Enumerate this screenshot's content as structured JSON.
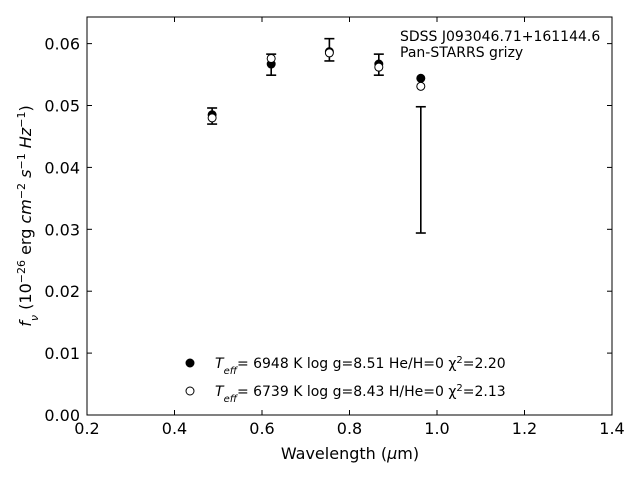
{
  "chart_data": {
    "type": "scatter",
    "xlabel": "Wavelength (μm)",
    "ylabel": "f_ν (10^-26 erg cm^-2 s^-1 Hz^-1)",
    "xlim": [
      0.2,
      1.4
    ],
    "ylim": [
      0.0,
      0.0643
    ],
    "xticks": [
      0.2,
      0.4,
      0.6,
      0.8,
      1.0,
      1.2,
      1.4
    ],
    "xtick_labels": [
      "0.2",
      "0.4",
      "0.6",
      "0.8",
      "1.0",
      "1.2",
      "1.4"
    ],
    "yticks": [
      0.0,
      0.01,
      0.02,
      0.03,
      0.04,
      0.05,
      0.06
    ],
    "ytick_labels": [
      "0.00",
      "0.01",
      "0.02",
      "0.03",
      "0.04",
      "0.05",
      "0.06"
    ],
    "grid": false,
    "annotations": [
      "SDSS J093046.71+161144.6",
      "Pan-STARRS grizy"
    ],
    "observed": {
      "x": [
        0.486,
        0.621,
        0.754,
        0.867,
        0.963
      ],
      "y": [
        0.0483,
        0.0566,
        0.059,
        0.0566,
        0.0396
      ],
      "yerr_low": [
        0.0013,
        0.0017,
        0.0018,
        0.0017,
        0.0102
      ],
      "yerr_high": [
        0.0013,
        0.0017,
        0.0018,
        0.0017,
        0.0102
      ]
    },
    "series": [
      {
        "marker": "filled-circle",
        "color": "#000000",
        "x": [
          0.486,
          0.621,
          0.754,
          0.867,
          0.963
        ],
        "y": [
          0.0485,
          0.0567,
          0.0587,
          0.0567,
          0.0544
        ]
      },
      {
        "marker": "open-circle",
        "color": "#000000",
        "x": [
          0.486,
          0.621,
          0.754,
          0.867,
          0.963
        ],
        "y": [
          0.048,
          0.0576,
          0.0585,
          0.0562,
          0.0531
        ]
      }
    ],
    "legend": {
      "location": "lower-center",
      "entries": [
        {
          "teff_label": "T",
          "teff_sub": "eff",
          "text": "=  6948 K  log g=8.51  He/H=0  χ",
          "chi_sup": "2",
          "chi_val": "=2.20"
        },
        {
          "teff_label": "T",
          "teff_sub": "eff",
          "text": "=  6739 K  log g=8.43  H/He=0  χ",
          "chi_sup": "2",
          "chi_val": "=2.13"
        }
      ]
    }
  }
}
